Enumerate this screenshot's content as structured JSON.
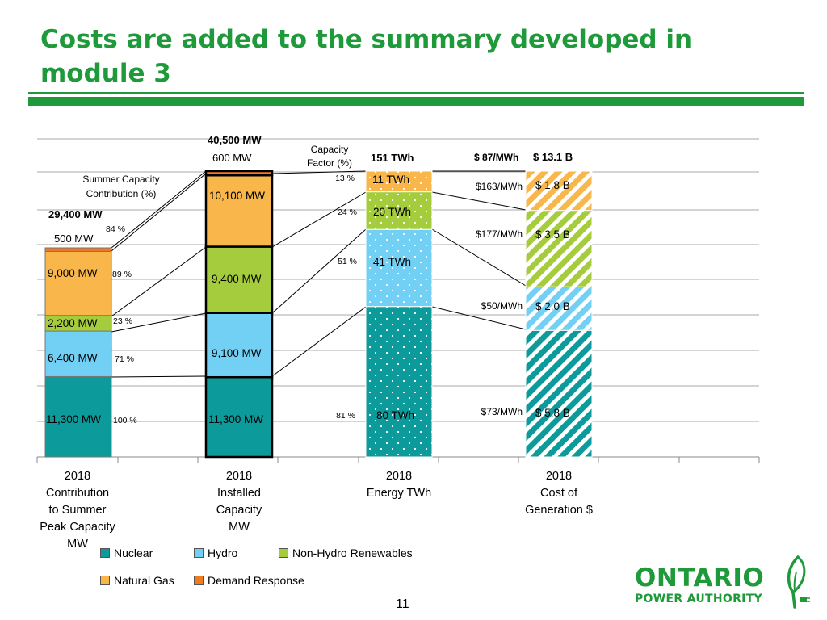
{
  "slide": {
    "title": "Costs are added to the summary developed in module 3",
    "page_number": "11",
    "logo_name": "ONTARIO",
    "logo_sub": "POWER AUTHORITY",
    "brand_color": "#1f9a3a"
  },
  "colors": {
    "Nuclear": "#0d9a9a",
    "Hydro": "#73d0f5",
    "Non-Hydro Renewables": "#a5cc3c",
    "Natural Gas": "#f9b64b",
    "Demand Response": "#f27a1f"
  },
  "chart_data": {
    "type": "bar",
    "stacked": true,
    "grid": true,
    "categories": [
      "2018\nContribution\nto  Summer\nPeak Capacity\nMW",
      "2018\nInstalled\nCapacity\nMW",
      "2018\nEnergy TWh",
      "2018\nCost of\nGeneration $"
    ],
    "legend": {
      "placement": "bottom",
      "entries": [
        "Nuclear",
        "Hydro",
        "Non-Hydro Renewables",
        "Natural Gas",
        "Demand Response"
      ]
    },
    "series": [
      {
        "name": "Nuclear",
        "values": [
          11300,
          11300,
          80,
          5.8
        ]
      },
      {
        "name": "Hydro",
        "values": [
          6400,
          9100,
          41,
          2.0
        ]
      },
      {
        "name": "Non-Hydro Renewables",
        "values": [
          2200,
          9400,
          20,
          3.5
        ]
      },
      {
        "name": "Natural Gas",
        "values": [
          9000,
          10100,
          11,
          1.8
        ]
      },
      {
        "name": "Demand Response",
        "values": [
          500,
          600,
          0,
          0
        ]
      }
    ],
    "bar_labels": {
      "contribution": [
        "11,300 MW",
        "6,400 MW",
        "2,200 MW",
        "9,000 MW"
      ],
      "installed": [
        "11,300 MW",
        "9,100 MW",
        "9,400 MW",
        "10,100 MW"
      ],
      "energy": [
        "80 TWh",
        "41 TWh",
        "20 TWh",
        "11 TWh"
      ],
      "cost": [
        "$ 5.8 B",
        "$ 2.0 B",
        "$ 3.5 B",
        "$ 1.8 B"
      ]
    },
    "contribution_pct": [
      "100 %",
      "71 %",
      "23 %",
      "89 %",
      "84 %"
    ],
    "capacity_factor": [
      "81 %",
      "51 %",
      "24 %",
      "13 %"
    ],
    "unit_costs": [
      "$73/MWh",
      "$50/MWh",
      "$177/MWh",
      "$163/MWh"
    ],
    "annotations": {
      "contribution_header": "Summer Capacity\nContribution (%)",
      "capacity_factor_header": "Capacity\nFactor (%)",
      "contribution_total": "29,400 MW",
      "contribution_dr": "500 MW",
      "installed_total": "40,500 MW",
      "installed_dr": "600 MW",
      "energy_total": "151 TWh",
      "avg_cost": "$ 87/MWh",
      "total_cost": "$ 13.1 B"
    }
  }
}
